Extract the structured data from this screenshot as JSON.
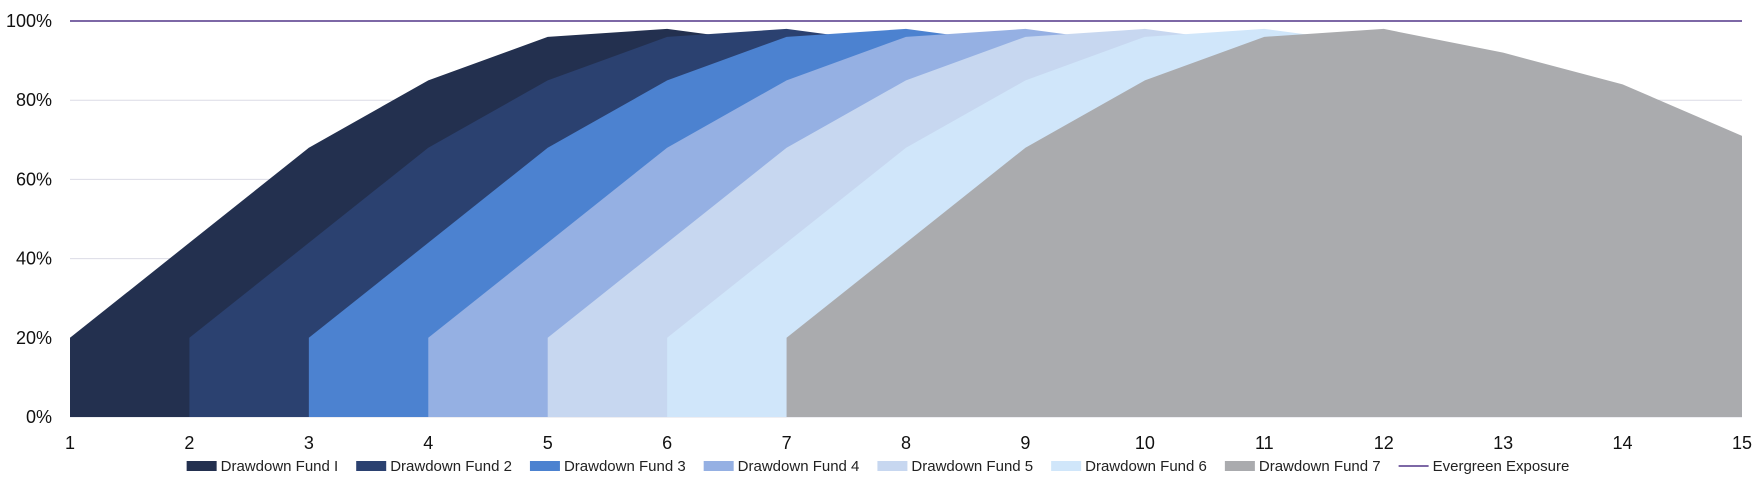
{
  "chart_data": {
    "type": "area",
    "title": "",
    "xlabel": "",
    "ylabel": "",
    "x": [
      1,
      2,
      3,
      4,
      5,
      6,
      7,
      8,
      9,
      10,
      11,
      12,
      13,
      14,
      15
    ],
    "xlim": [
      1,
      15
    ],
    "ylim": [
      0,
      100
    ],
    "yticks": [
      "0%",
      "20%",
      "40%",
      "60%",
      "80%",
      "100%"
    ],
    "ytick_values": [
      0,
      20,
      40,
      60,
      80,
      100
    ],
    "grid": "horizontal",
    "legend_position": "bottom",
    "series": [
      {
        "name": "Drawdown Fund I",
        "color": "#23304f",
        "points": [
          [
            1,
            20
          ],
          [
            2,
            44
          ],
          [
            3,
            68
          ],
          [
            4,
            85
          ],
          [
            5,
            96
          ],
          [
            6,
            98
          ],
          [
            7,
            94
          ]
        ]
      },
      {
        "name": "Drawdown Fund 2",
        "color": "#2b4170",
        "points": [
          [
            2,
            20
          ],
          [
            3,
            44
          ],
          [
            4,
            68
          ],
          [
            5,
            85
          ],
          [
            6,
            96
          ],
          [
            7,
            98
          ],
          [
            8,
            94
          ]
        ]
      },
      {
        "name": "Drawdown Fund 3",
        "color": "#4c82d0",
        "points": [
          [
            3,
            20
          ],
          [
            4,
            44
          ],
          [
            5,
            68
          ],
          [
            6,
            85
          ],
          [
            7,
            96
          ],
          [
            8,
            98
          ],
          [
            9,
            94
          ]
        ]
      },
      {
        "name": "Drawdown Fund 4",
        "color": "#95b0e3",
        "points": [
          [
            4,
            20
          ],
          [
            5,
            44
          ],
          [
            6,
            68
          ],
          [
            7,
            85
          ],
          [
            8,
            96
          ],
          [
            9,
            98
          ],
          [
            10,
            94
          ]
        ]
      },
      {
        "name": "Drawdown Fund 5",
        "color": "#c7d7f0",
        "points": [
          [
            5,
            20
          ],
          [
            6,
            44
          ],
          [
            7,
            68
          ],
          [
            8,
            85
          ],
          [
            9,
            96
          ],
          [
            10,
            98
          ],
          [
            11,
            94
          ]
        ]
      },
      {
        "name": "Drawdown Fund 6",
        "color": "#d0e6fa",
        "points": [
          [
            6,
            20
          ],
          [
            7,
            44
          ],
          [
            8,
            68
          ],
          [
            9,
            85
          ],
          [
            10,
            96
          ],
          [
            11,
            98
          ],
          [
            12,
            94
          ]
        ]
      },
      {
        "name": "Drawdown Fund 7",
        "color": "#aaabae",
        "points": [
          [
            7,
            20
          ],
          [
            8,
            44
          ],
          [
            9,
            68
          ],
          [
            10,
            85
          ],
          [
            11,
            96
          ],
          [
            12,
            98
          ],
          [
            13,
            92
          ],
          [
            14,
            84
          ],
          [
            15,
            71
          ]
        ]
      }
    ],
    "lines": [
      {
        "name": "Evergreen Exposure",
        "color": "#7d68a6",
        "y": 100
      }
    ]
  }
}
